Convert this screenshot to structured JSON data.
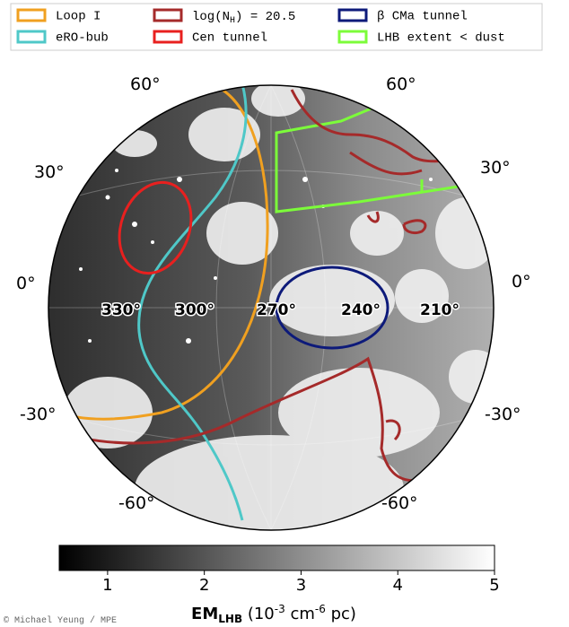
{
  "legend": {
    "loop": "Loop I",
    "erobub": "eRO-bub",
    "nh": [
      "log(N",
      "H",
      ") = 20.5"
    ],
    "cen": "Cen tunnel",
    "bcma": "β CMa tunnel",
    "lhb": "LHB extent < dust"
  },
  "lat_labels": {
    "left": [
      "60°",
      "30°",
      "0°",
      "-30°",
      "-60°"
    ],
    "right": [
      "60°",
      "30°",
      "0°",
      "-30°",
      "-60°"
    ]
  },
  "lon_labels": [
    "330°",
    "300°",
    "270°",
    "240°",
    "210°"
  ],
  "colorbar": {
    "range": [
      0.5,
      5.0
    ],
    "ticks": [
      1,
      2,
      3,
      4,
      5
    ],
    "label": [
      "EM",
      "LHB",
      " (10",
      "-3",
      " cm",
      "-6",
      " pc)"
    ]
  },
  "credit": "© Michael Yeung / MPE"
}
